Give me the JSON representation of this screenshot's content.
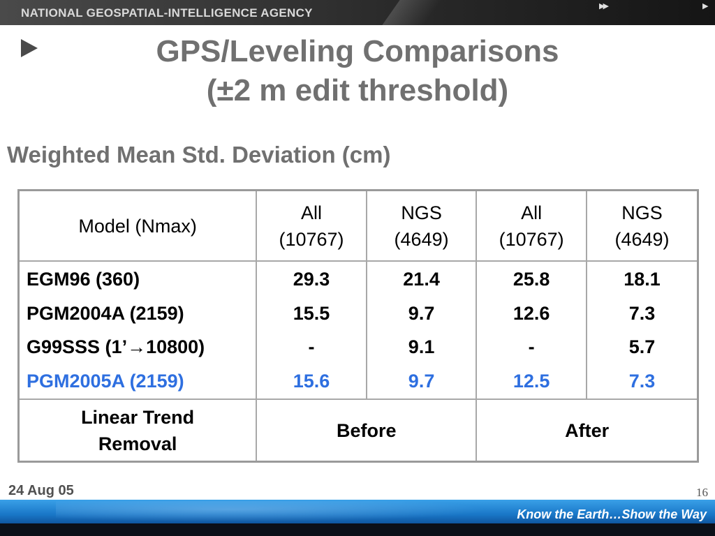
{
  "header": {
    "agency": "NATIONAL GEOSPATIAL-INTELLIGENCE AGENCY",
    "nav_prev": "▶▶",
    "nav_next": "▶"
  },
  "title": {
    "line1": "GPS/Leveling Comparisons",
    "line2": "(±2 m edit threshold)"
  },
  "subtitle": "Weighted Mean Std. Deviation (cm)",
  "table": {
    "header": {
      "model_col": "Model (Nmax)",
      "columns": [
        {
          "label": "All",
          "count": "(10767)"
        },
        {
          "label": "NGS",
          "count": "(4649)"
        },
        {
          "label": "All",
          "count": "(10767)"
        },
        {
          "label": "NGS",
          "count": "(4649)"
        }
      ]
    },
    "rows": [
      {
        "model": "EGM96 (360)",
        "values": [
          "29.3",
          "21.4",
          "25.8",
          "18.1"
        ]
      },
      {
        "model": "PGM2004A (2159)",
        "values": [
          "15.5",
          "9.7",
          "12.6",
          "7.3"
        ]
      },
      {
        "model": "G99SSS (1’→10800)",
        "values": [
          "-",
          "9.1",
          "-",
          "5.7"
        ]
      },
      {
        "model": "PGM2005A (2159)",
        "values": [
          "15.6",
          "9.7",
          "12.5",
          "7.3"
        ],
        "highlight": true
      }
    ],
    "footer": {
      "label_line1": "Linear Trend",
      "label_line2": "Removal",
      "before": "Before",
      "after": "After"
    }
  },
  "footer": {
    "date": "24 Aug 05",
    "page": "16",
    "tagline": "Know the Earth…Show the Way"
  },
  "colors": {
    "highlight": "#2e6fe0",
    "title_gray": "#707070"
  }
}
